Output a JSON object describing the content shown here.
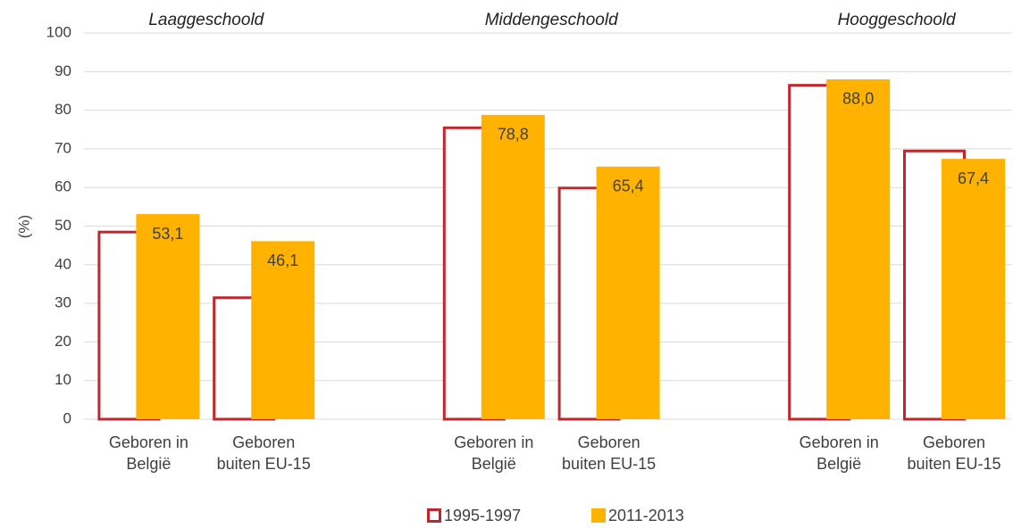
{
  "chart_data": {
    "type": "bar",
    "ylabel": "(%)",
    "group_labels": [
      "Laaggeschoold",
      "Middengeschoold",
      "Hooggeschoold"
    ],
    "categories": [
      "Geboren in België",
      "Geboren buiten EU-15",
      null,
      "Geboren in België",
      "Geboren buiten EU-15",
      null,
      "Geboren in België",
      "Geboren buiten EU-15"
    ],
    "series": [
      {
        "name": "1995-1997",
        "color": "#c0272d",
        "style": "outline",
        "values": [
          48.8,
          31.8,
          null,
          75.8,
          60.2,
          null,
          86.8,
          69.8
        ]
      },
      {
        "name": "2011-2013",
        "color": "#ffb300",
        "style": "filled",
        "values": [
          53.1,
          46.1,
          null,
          78.8,
          65.4,
          null,
          88.0,
          67.4
        ],
        "value_labels": [
          "53,1",
          "46,1",
          null,
          "78,8",
          "65,4",
          null,
          "88,0",
          "67,4"
        ]
      }
    ],
    "ylim": [
      0,
      100
    ],
    "yticks": [
      0,
      10,
      20,
      30,
      40,
      50,
      60,
      70,
      80,
      90,
      100
    ],
    "grid": true,
    "legend": "bottom"
  }
}
